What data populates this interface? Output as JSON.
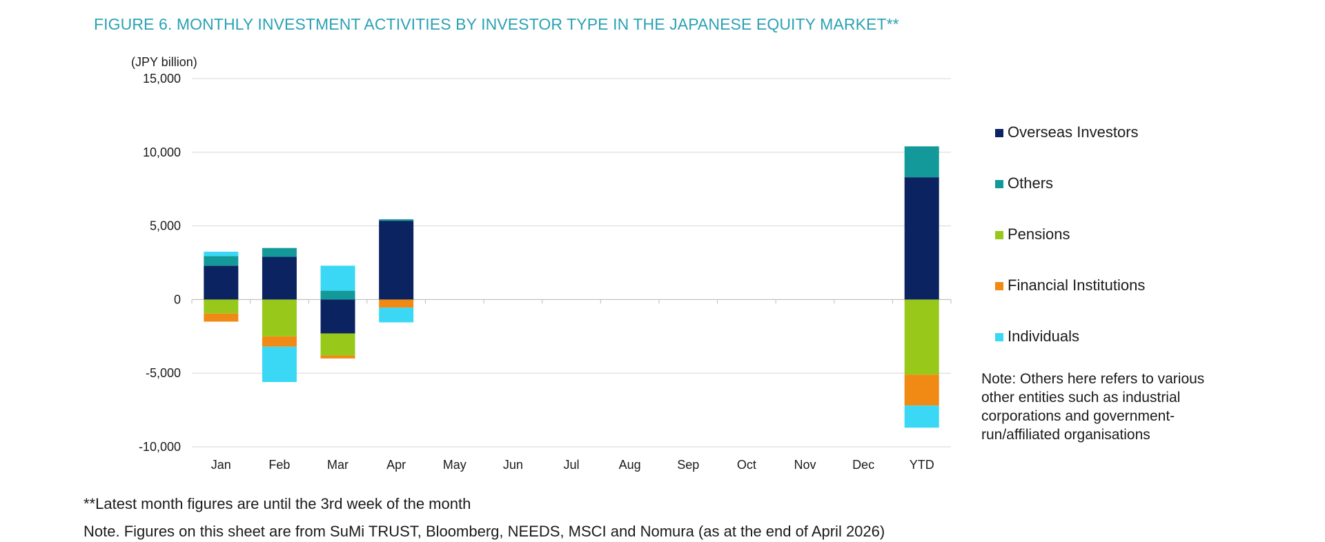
{
  "title": "FIGURE 6. MONTHLY INVESTMENT ACTIVITIES BY INVESTOR TYPE IN THE JAPANESE EQUITY MARKET**",
  "side_note": "Note: Others here refers to various other entities such as industrial corporations and government-run/affiliated organisations",
  "footnote_1": "**Latest month figures are until the 3rd week of the month",
  "footnote_2": "Note. Figures on this sheet are from SuMi TRUST, Bloomberg, NEEDS, MSCI and Nomura (as at the end of April 2026)",
  "chart_data": {
    "type": "bar",
    "stacked": true,
    "y_unit_label": "(JPY billion)",
    "ylim": [
      -10000,
      15000
    ],
    "y_ticks": [
      -10000,
      -5000,
      0,
      5000,
      10000,
      15000
    ],
    "y_tick_labels": [
      "-10,000",
      "-5,000",
      "0",
      "5,000",
      "10,000",
      "15,000"
    ],
    "grid": true,
    "legend_position": "right",
    "categories": [
      "Jan",
      "Feb",
      "Mar",
      "Apr",
      "May",
      "Jun",
      "Jul",
      "Aug",
      "Sep",
      "Oct",
      "Nov",
      "Dec",
      "YTD"
    ],
    "series": [
      {
        "name": "Overseas Investors",
        "color": "#0b2361",
        "values": [
          2300,
          2900,
          -2300,
          5350,
          null,
          null,
          null,
          null,
          null,
          null,
          null,
          null,
          8300
        ]
      },
      {
        "name": "Others",
        "color": "#14999a",
        "values": [
          650,
          600,
          600,
          100,
          null,
          null,
          null,
          null,
          null,
          null,
          null,
          null,
          2100
        ]
      },
      {
        "name": "Pensions",
        "color": "#98c91a",
        "values": [
          -950,
          -2500,
          -1500,
          0,
          null,
          null,
          null,
          null,
          null,
          null,
          null,
          null,
          -5100
        ]
      },
      {
        "name": "Financial Institutions",
        "color": "#f18a14",
        "values": [
          -550,
          -700,
          -200,
          -550,
          null,
          null,
          null,
          null,
          null,
          null,
          null,
          null,
          -2100
        ]
      },
      {
        "name": "Individuals",
        "color": "#3ad8f5",
        "values": [
          300,
          -2400,
          1700,
          -1000,
          null,
          null,
          null,
          null,
          null,
          null,
          null,
          null,
          -1500
        ]
      }
    ]
  }
}
